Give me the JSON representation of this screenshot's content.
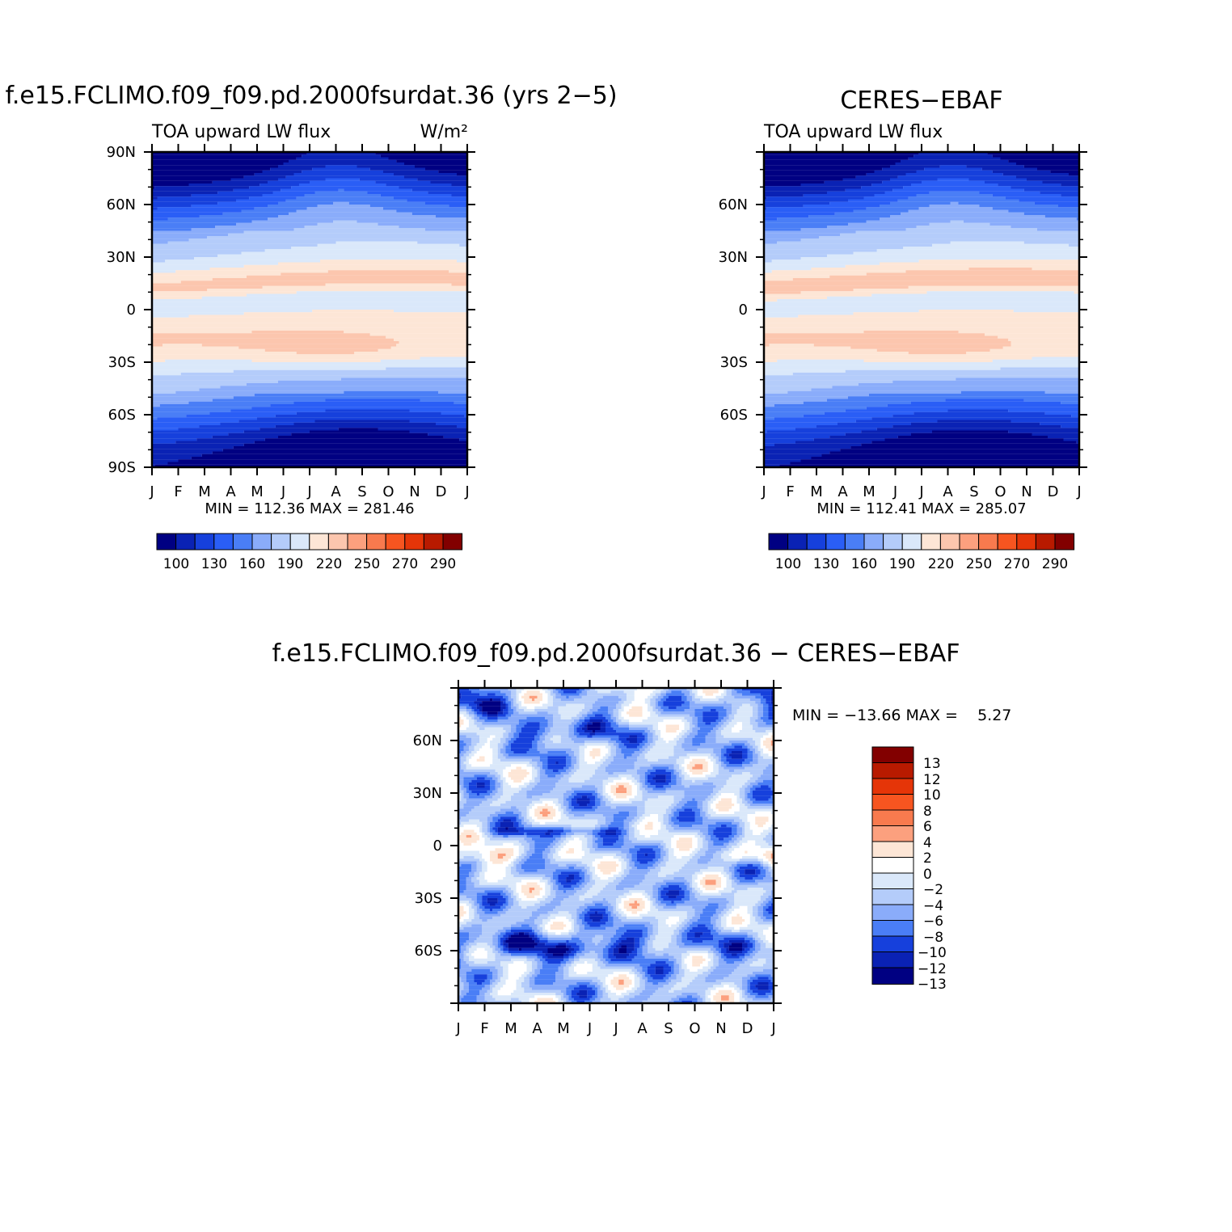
{
  "chart_data": [
    {
      "type": "heatmap",
      "title": "f.e15.FCLIMO.f09_f09.pd.2000fsurdat.36 (yrs 2−5)",
      "subtitle_left": "TOA upward LW flux",
      "subtitle_right": "W/m²",
      "xlabel": "",
      "ylabel": "",
      "x_ticks": [
        "J",
        "F",
        "M",
        "A",
        "M",
        "J",
        "J",
        "A",
        "S",
        "O",
        "N",
        "D",
        "J"
      ],
      "y_ticks": [
        "90N",
        "60N",
        "30N",
        "0",
        "30S",
        "60S",
        "90S"
      ],
      "x_range": [
        "Jan",
        "Jan"
      ],
      "y_range": [
        90,
        -90
      ],
      "stats": "MIN = 112.36 MAX = 281.46",
      "colorbar_labels": [
        "100",
        "130",
        "160",
        "190",
        "220",
        "250",
        "270",
        "290"
      ],
      "field": {
        "mode": "model",
        "min": 112.36,
        "max": 281.46
      }
    },
    {
      "type": "heatmap",
      "title": "CERES−EBAF",
      "subtitle_left": "TOA upward LW flux",
      "subtitle_right": "",
      "xlabel": "",
      "ylabel": "",
      "x_ticks": [
        "J",
        "F",
        "M",
        "A",
        "M",
        "J",
        "J",
        "A",
        "S",
        "O",
        "N",
        "D",
        "J"
      ],
      "y_ticks": [
        "",
        "60N",
        "30N",
        "0",
        "30S",
        "60S",
        ""
      ],
      "x_range": [
        "Jan",
        "Jan"
      ],
      "y_range": [
        90,
        -90
      ],
      "stats": "MIN = 112.41 MAX = 285.07",
      "colorbar_labels": [
        "100",
        "130",
        "160",
        "190",
        "220",
        "250",
        "270",
        "290"
      ],
      "field": {
        "mode": "obs",
        "min": 112.41,
        "max": 285.07
      }
    },
    {
      "type": "heatmap",
      "title": "f.e15.FCLIMO.f09_f09.pd.2000fsurdat.36 − CERES−EBAF",
      "xlabel": "",
      "ylabel": "",
      "x_ticks": [
        "J",
        "F",
        "M",
        "A",
        "M",
        "J",
        "J",
        "A",
        "S",
        "O",
        "N",
        "D",
        "J"
      ],
      "y_ticks": [
        "",
        "60N",
        "30N",
        "0",
        "30S",
        "60S",
        ""
      ],
      "x_range": [
        "Jan",
        "Jan"
      ],
      "y_range": [
        90,
        -90
      ],
      "stats": "MIN = −13.66 MAX =    5.27",
      "colorbar_labels": [
        "13",
        "12",
        "10",
        "8",
        "6",
        "4",
        "2",
        "0",
        "−2",
        "−4",
        "−6",
        "−8",
        "−10",
        "−12",
        "−13"
      ],
      "field": {
        "mode": "diff",
        "min": -13.66,
        "max": 5.27
      }
    }
  ],
  "colors": {
    "abs_levels": [
      "#000082",
      "#0a22b4",
      "#1640dc",
      "#2a5ef6",
      "#4a7ef6",
      "#8aacfa",
      "#b4ccfa",
      "#dae8fa",
      "#fde6d6",
      "#fcc6ae",
      "#fca07e",
      "#f87a4e",
      "#f75520",
      "#e53508",
      "#b81a00",
      "#820000"
    ],
    "diff_levels": [
      "#820000",
      "#b81a00",
      "#e53508",
      "#f75520",
      "#f87a4e",
      "#fca07e",
      "#fde6d6",
      "#ffffff",
      "#dae8fa",
      "#b4ccfa",
      "#8aacfa",
      "#4a7ef6",
      "#1640dc",
      "#0a22b4",
      "#000082"
    ]
  }
}
